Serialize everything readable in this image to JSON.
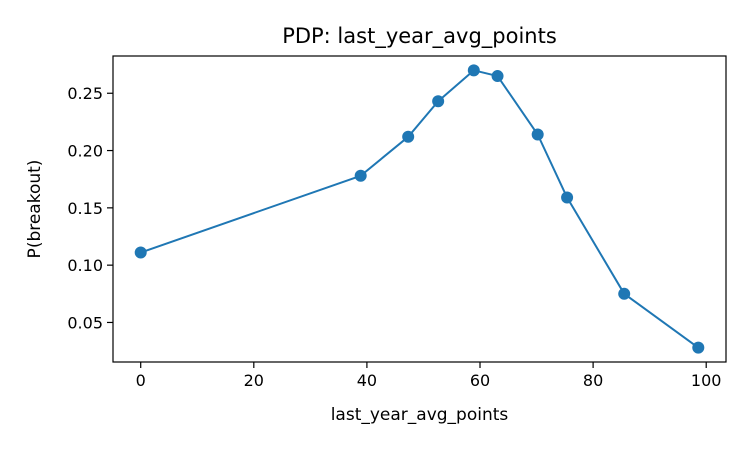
{
  "chart_data": {
    "type": "line",
    "title": "PDP: last_year_avg_points",
    "xlabel": "last_year_avg_points",
    "ylabel": "P(breakout)",
    "xlim": [
      -4.9,
      103.5
    ],
    "ylim": [
      0.0155,
      0.2825
    ],
    "xticks": [
      0,
      20,
      40,
      60,
      80,
      100
    ],
    "yticks": [
      0.05,
      0.1,
      0.15,
      0.2,
      0.25
    ],
    "xtick_labels": [
      "0",
      "20",
      "40",
      "60",
      "80",
      "100"
    ],
    "ytick_labels": [
      "0.05",
      "0.10",
      "0.15",
      "0.20",
      "0.25"
    ],
    "grid": false,
    "series": [
      {
        "color": "#1f77b4",
        "marker": "circle",
        "x": [
          0,
          38.9,
          47.3,
          52.6,
          58.9,
          63.1,
          70.2,
          75.4,
          85.5,
          98.6
        ],
        "y": [
          0.111,
          0.178,
          0.212,
          0.243,
          0.27,
          0.265,
          0.214,
          0.159,
          0.075,
          0.028
        ]
      }
    ]
  }
}
